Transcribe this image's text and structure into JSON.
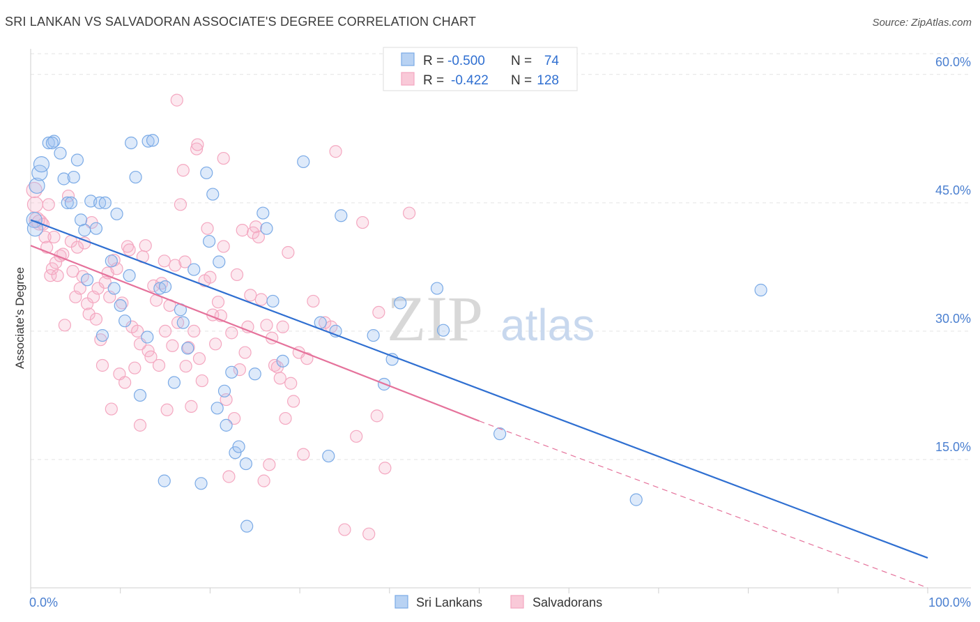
{
  "chart_data": {
    "type": "scatter",
    "title": "SRI LANKAN VS SALVADORAN ASSOCIATE'S DEGREE CORRELATION CHART",
    "source": "Source: ZipAtlas.com",
    "watermark": {
      "zip": "ZIP",
      "atlas": "atlas"
    },
    "xlabel": "",
    "ylabel": "Associate's Degree",
    "xlim": [
      0,
      100
    ],
    "ylim": [
      0,
      63
    ],
    "x_tick_labels": {
      "min": "0.0%",
      "max": "100.0%"
    },
    "y_ticks": [
      {
        "value": 15,
        "label": "15.0%"
      },
      {
        "value": 30,
        "label": "30.0%"
      },
      {
        "value": 45,
        "label": "45.0%"
      },
      {
        "value": 60,
        "label": "60.0%"
      }
    ],
    "grid": "horizontal-dashed",
    "legend": {
      "position": "top-center",
      "rows": [
        {
          "r_label": "R =",
          "r_value": "-0.500",
          "n_label": "N =",
          "n_value": "74"
        },
        {
          "r_label": "R =",
          "r_value": "-0.422",
          "n_label": "N =",
          "n_value": "128"
        }
      ]
    },
    "series": [
      {
        "name": "Sri Lankans",
        "color": "#7aaae6",
        "line_color": "#2f6fd1",
        "trend": {
          "x0": 0,
          "y0": 43.0,
          "x1": 100,
          "y1": 3.5
        },
        "points": [
          [
            0.4,
            43
          ],
          [
            0.5,
            42
          ],
          [
            0.7,
            47
          ],
          [
            1,
            48.5
          ],
          [
            1.2,
            49.5
          ],
          [
            2,
            52
          ],
          [
            2.6,
            52.2
          ],
          [
            2.4,
            52
          ],
          [
            3.3,
            50.8
          ],
          [
            3.7,
            47.8
          ],
          [
            4.1,
            45
          ],
          [
            4.8,
            48
          ],
          [
            5.2,
            50
          ],
          [
            5.6,
            43
          ],
          [
            6,
            41.8
          ],
          [
            6.3,
            36
          ],
          [
            6.7,
            45.2
          ],
          [
            7.3,
            42
          ],
          [
            7.7,
            45
          ],
          [
            8,
            29.5
          ],
          [
            8.3,
            45
          ],
          [
            9,
            38.2
          ],
          [
            9.6,
            43.7
          ],
          [
            10,
            33
          ],
          [
            10.5,
            31.2
          ],
          [
            11,
            36.5
          ],
          [
            11.2,
            52
          ],
          [
            11.7,
            48
          ],
          [
            12.2,
            22.5
          ],
          [
            13.1,
            52.2
          ],
          [
            13,
            29.3
          ],
          [
            13.6,
            52.3
          ],
          [
            14.4,
            35
          ],
          [
            14.9,
            12.5
          ],
          [
            15,
            35.2
          ],
          [
            16,
            24
          ],
          [
            16.7,
            32.5
          ],
          [
            17,
            31
          ],
          [
            17.5,
            28
          ],
          [
            18.2,
            37.2
          ],
          [
            19,
            12.2
          ],
          [
            19.6,
            48.5
          ],
          [
            19.9,
            40.5
          ],
          [
            20.3,
            46
          ],
          [
            20.8,
            21
          ],
          [
            21,
            38.1
          ],
          [
            21.6,
            23
          ],
          [
            21.8,
            19
          ],
          [
            22.4,
            25.2
          ],
          [
            22.8,
            15.8
          ],
          [
            23.2,
            16.5
          ],
          [
            24,
            14.5
          ],
          [
            24.1,
            7.2
          ],
          [
            25,
            25
          ],
          [
            25.9,
            43.8
          ],
          [
            26.3,
            42
          ],
          [
            27,
            33.5
          ],
          [
            28.1,
            26.5
          ],
          [
            30.4,
            49.8
          ],
          [
            32.3,
            31
          ],
          [
            33.2,
            15.4
          ],
          [
            34,
            30
          ],
          [
            34.6,
            43.5
          ],
          [
            38.2,
            29.5
          ],
          [
            39.4,
            23.8
          ],
          [
            40.3,
            26.7
          ],
          [
            41.2,
            33.3
          ],
          [
            45.3,
            35
          ],
          [
            46,
            30.1
          ],
          [
            52.3,
            18
          ],
          [
            67.5,
            10.3
          ],
          [
            81.4,
            34.8
          ],
          [
            4.5,
            45
          ],
          [
            9.3,
            35
          ]
        ]
      },
      {
        "name": "Salvadorans",
        "color": "#f4a7c0",
        "line_color": "#e5729b",
        "trend": {
          "x0": 0,
          "y0": 40.0,
          "x1": 50,
          "y1": 19.5
        },
        "trend_dashed_to": {
          "x": 100,
          "y": 0
        },
        "points": [
          [
            0.4,
            46.5
          ],
          [
            0.5,
            44.8
          ],
          [
            0.7,
            43
          ],
          [
            1,
            42.7
          ],
          [
            1.4,
            42.5
          ],
          [
            1.6,
            41
          ],
          [
            1.8,
            39.8
          ],
          [
            2,
            44.8
          ],
          [
            2.2,
            36.5
          ],
          [
            2.4,
            37.3
          ],
          [
            2.6,
            41
          ],
          [
            2.8,
            38
          ],
          [
            3.0,
            36.5
          ],
          [
            3.3,
            38.8
          ],
          [
            3.6,
            39
          ],
          [
            3.8,
            30.7
          ],
          [
            4.2,
            45.8
          ],
          [
            4.5,
            40.5
          ],
          [
            4.7,
            37
          ],
          [
            5,
            34
          ],
          [
            5.2,
            39.8
          ],
          [
            5.5,
            35
          ],
          [
            5.8,
            36.4
          ],
          [
            6,
            40.3
          ],
          [
            6.3,
            33.2
          ],
          [
            6.5,
            32
          ],
          [
            6.8,
            42.7
          ],
          [
            7,
            34
          ],
          [
            7.3,
            31.4
          ],
          [
            7.5,
            35
          ],
          [
            7.8,
            29
          ],
          [
            8,
            26
          ],
          [
            8.3,
            35.7
          ],
          [
            8.6,
            36.8
          ],
          [
            8.8,
            34
          ],
          [
            9,
            20.9
          ],
          [
            9.3,
            38.3
          ],
          [
            9.6,
            37.3
          ],
          [
            9.9,
            25
          ],
          [
            10.2,
            33.3
          ],
          [
            10.5,
            24
          ],
          [
            10.8,
            39.9
          ],
          [
            11,
            39.5
          ],
          [
            11.3,
            30.5
          ],
          [
            11.6,
            25.7
          ],
          [
            11.9,
            30
          ],
          [
            12.2,
            19
          ],
          [
            12.5,
            38.7
          ],
          [
            12.8,
            40
          ],
          [
            13.1,
            27.7
          ],
          [
            13.4,
            27
          ],
          [
            13.7,
            35.3
          ],
          [
            14,
            33.6
          ],
          [
            14.3,
            26
          ],
          [
            14.6,
            35.6
          ],
          [
            14.9,
            38.2
          ],
          [
            15.2,
            20.8
          ],
          [
            15.5,
            33
          ],
          [
            15.8,
            28.3
          ],
          [
            16.1,
            37.7
          ],
          [
            16.4,
            31
          ],
          [
            16.7,
            44.8
          ],
          [
            17,
            48.8
          ],
          [
            17.3,
            25.9
          ],
          [
            17.6,
            28.1
          ],
          [
            17.9,
            21.2
          ],
          [
            18.2,
            30
          ],
          [
            18.5,
            51.3
          ],
          [
            18.8,
            26.8
          ],
          [
            19.1,
            24.2
          ],
          [
            19.4,
            35.9
          ],
          [
            19.7,
            42
          ],
          [
            20,
            36.3
          ],
          [
            20.3,
            31.9
          ],
          [
            20.6,
            28.5
          ],
          [
            20.9,
            33.4
          ],
          [
            21.2,
            31.8
          ],
          [
            21.5,
            39.9
          ],
          [
            21.8,
            22
          ],
          [
            22.1,
            13
          ],
          [
            22.4,
            29.8
          ],
          [
            22.7,
            19.8
          ],
          [
            23,
            36.6
          ],
          [
            23.3,
            25.5
          ],
          [
            23.6,
            41.8
          ],
          [
            23.9,
            27.5
          ],
          [
            24.2,
            30.5
          ],
          [
            24.5,
            34.2
          ],
          [
            24.8,
            41.5
          ],
          [
            25.1,
            42.2
          ],
          [
            25.4,
            41
          ],
          [
            25.7,
            33.7
          ],
          [
            26.0,
            12.5
          ],
          [
            26.3,
            30.7
          ],
          [
            26.6,
            14.4
          ],
          [
            26.9,
            29.2
          ],
          [
            27.2,
            26
          ],
          [
            27.5,
            25.8
          ],
          [
            27.8,
            24.5
          ],
          [
            28.1,
            30.5
          ],
          [
            28.4,
            19.8
          ],
          [
            28.7,
            39.2
          ],
          [
            29,
            23.9
          ],
          [
            29.3,
            21.8
          ],
          [
            29.9,
            27.5
          ],
          [
            30.4,
            15.6
          ],
          [
            30.8,
            26.8
          ],
          [
            31.5,
            33.5
          ],
          [
            32.8,
            31
          ],
          [
            33.5,
            30.5
          ],
          [
            34,
            51
          ],
          [
            35,
            6.8
          ],
          [
            36.3,
            17.7
          ],
          [
            37,
            42.7
          ],
          [
            37.7,
            6.3
          ],
          [
            38.6,
            20.1
          ],
          [
            38.8,
            32.2
          ],
          [
            39.5,
            14
          ],
          [
            42.2,
            43.8
          ],
          [
            16.3,
            57
          ],
          [
            18.6,
            51.8
          ],
          [
            21.5,
            50.2
          ],
          [
            17.2,
            38.1
          ],
          [
            15.0,
            30.0
          ],
          [
            12.2,
            28.5
          ]
        ]
      }
    ]
  }
}
